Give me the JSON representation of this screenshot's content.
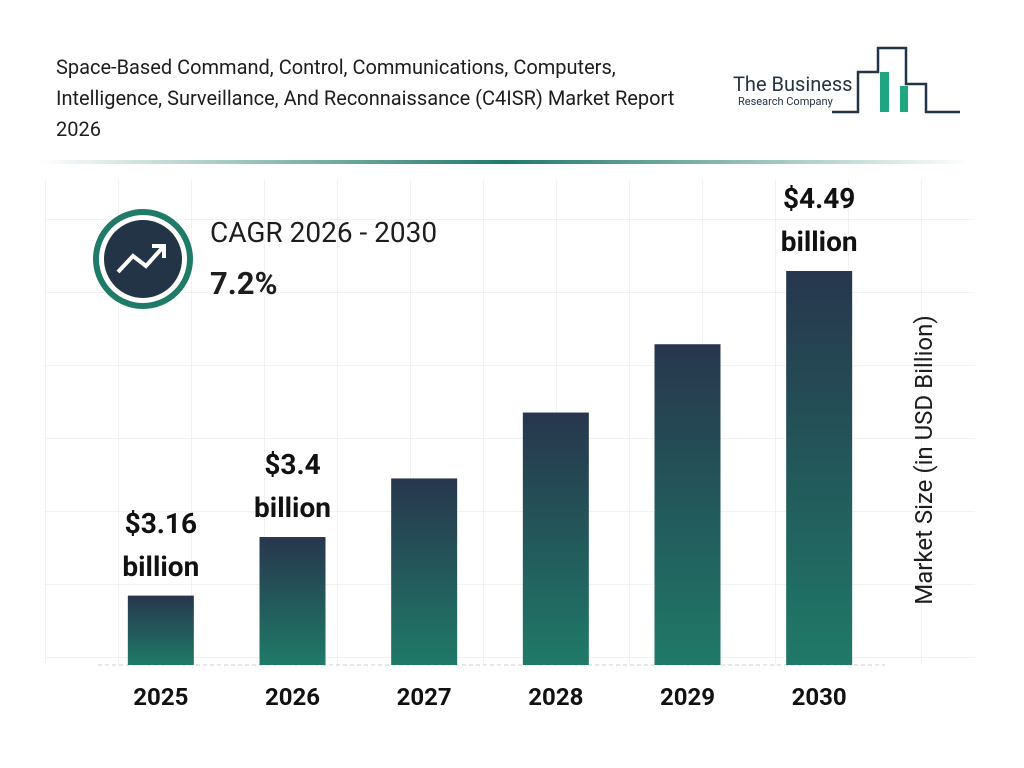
{
  "header": {
    "title": "Space-Based Command, Control, Communications, Computers, Intelligence, Surveillance, And Reconnaissance (C4ISR) Market Report 2026",
    "logo_line1": "The Business",
    "logo_line2": "Research Company"
  },
  "chart_data": {
    "type": "bar",
    "cagr_label": "CAGR 2026 - 2030",
    "cagr_value": "7.2%",
    "y_label": "Market Size (in USD Billion)",
    "categories": [
      "2025",
      "2026",
      "2027",
      "2028",
      "2029",
      "2030"
    ],
    "values": [
      3.16,
      3.4,
      3.64,
      3.91,
      4.19,
      4.49
    ],
    "value_labels": [
      "$3.16 billion",
      "$3.4 billion",
      null,
      null,
      null,
      "$4.49 billion"
    ],
    "color": "#1f7a68"
  }
}
